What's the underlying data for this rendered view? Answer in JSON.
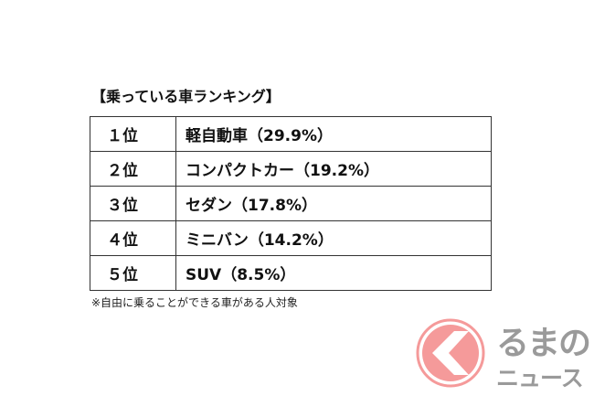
{
  "title": "【乗っている車ランキング】",
  "rows": [
    {
      "rank": "１位",
      "name": "軽自動車（29.9%）"
    },
    {
      "rank": "２位",
      "name": "コンパクトカー（19.2%）"
    },
    {
      "rank": "３位",
      "name": "セダン（17.8%）"
    },
    {
      "rank": "４位",
      "name": "ミニバン（14.2%）"
    },
    {
      "rank": "５位",
      "name": "SUV（8.5%）"
    }
  ],
  "note": "※自由に乗ることができる車がある人対象",
  "logo": {
    "line1": "るまの",
    "line2": "ニュース",
    "color": "#f59a9a",
    "text_color": "#9a9a9a"
  }
}
